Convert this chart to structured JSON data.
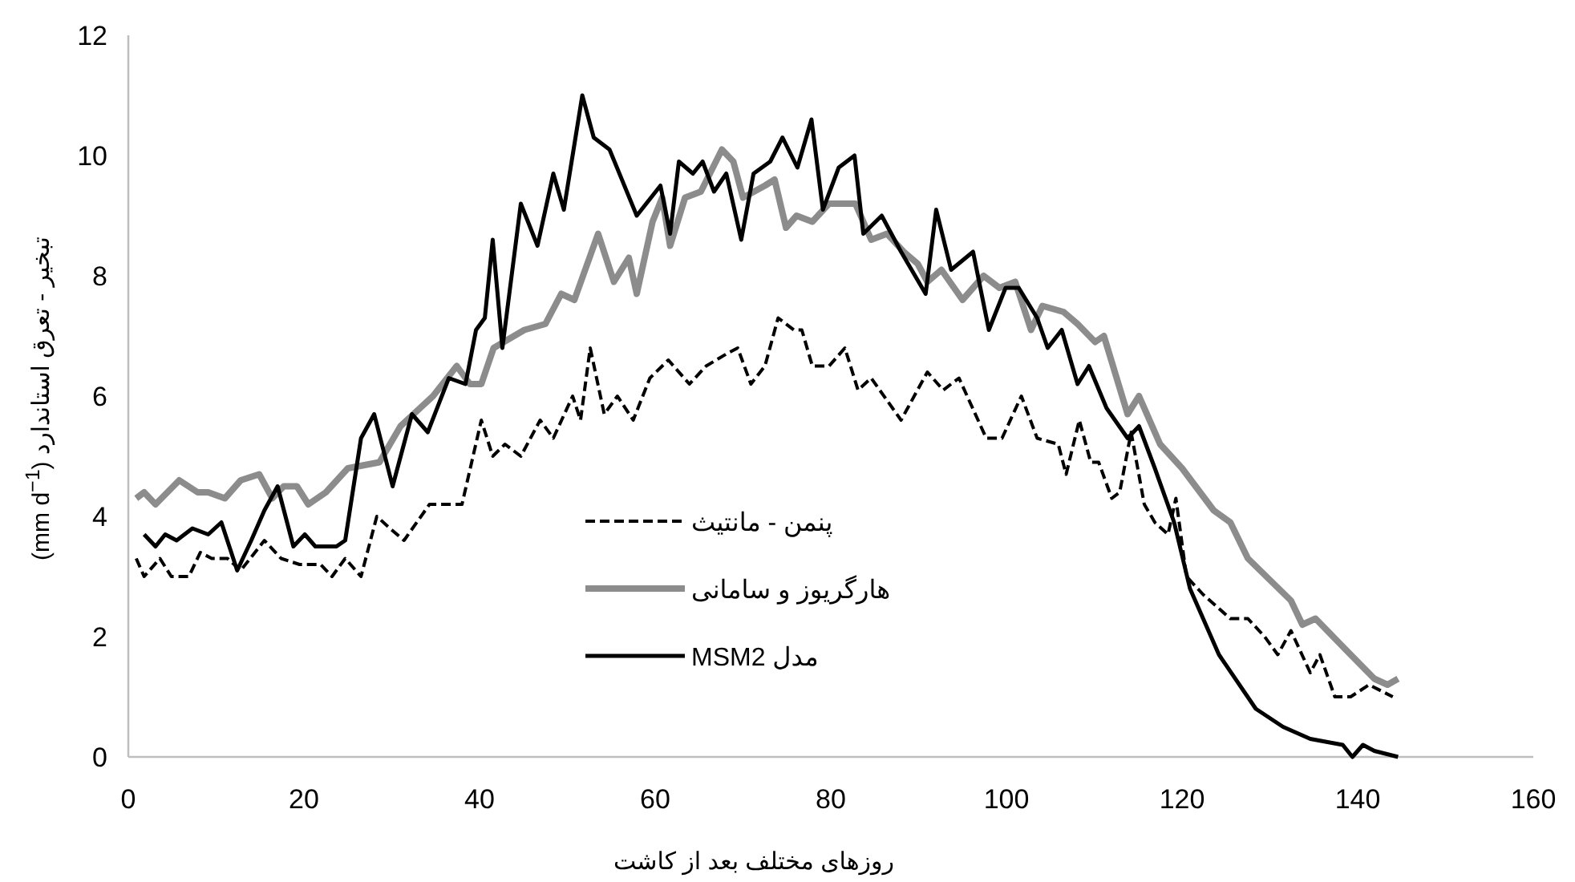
{
  "chart_data": {
    "type": "line",
    "xlabel": "روزهای مختلف بعد از کاشت",
    "ylabel": "تبخیر - تعرق استاندارد (mm d$^{−1}$)",
    "xlim": [
      0,
      160
    ],
    "xticks": [
      0,
      20,
      40,
      60,
      80,
      100,
      120,
      140,
      160
    ],
    "ylim": [
      0,
      12
    ],
    "yticks": [
      0,
      2,
      4,
      6,
      8,
      10,
      12
    ],
    "legend": "center",
    "series": [
      {
        "name": "پنمن - مانتیث",
        "color": "#000000",
        "line_style": "dashed",
        "x": [
          0.9,
          1.8,
          3.6,
          4.9,
          6.9,
          8.2,
          9.5,
          11.3,
          12.8,
          15.5,
          17.4,
          19.5,
          21.9,
          23.2,
          24.7,
          26.5,
          28.3,
          29.8,
          31.4,
          34.3,
          36.5,
          38,
          40.2,
          41.5,
          42.9,
          44.7,
          46.9,
          48.4,
          50.6,
          51.5,
          52.6,
          54.2,
          55.7,
          57.5,
          59.4,
          61.5,
          63.9,
          65.8,
          68.1,
          69.4,
          70.9,
          72.5,
          74,
          75.8,
          76.7,
          77.9,
          79.8,
          81.6,
          83.1,
          84.6,
          88,
          91,
          92.8,
          94.6,
          97.7,
          99.5,
          101.7,
          103.5,
          105.9,
          106.8,
          108.3,
          109.6,
          110.5,
          112,
          112.9,
          114.2,
          115.7,
          116.9,
          118.4,
          119.3,
          120.5,
          122.4,
          125.5,
          127.5,
          129.4,
          130.9,
          132.4,
          134.6,
          135.7,
          137.4,
          139.2,
          141.3,
          144
        ],
        "values": [
          3.3,
          3.0,
          3.3,
          3.0,
          3.0,
          3.4,
          3.3,
          3.3,
          3.1,
          3.6,
          3.3,
          3.2,
          3.2,
          3.0,
          3.3,
          3.0,
          4.0,
          3.8,
          3.6,
          4.2,
          4.2,
          4.2,
          5.6,
          5.0,
          5.2,
          5.0,
          5.6,
          5.3,
          6.0,
          5.6,
          6.8,
          5.7,
          6.0,
          5.6,
          6.3,
          6.6,
          6.2,
          6.5,
          6.7,
          6.8,
          6.2,
          6.5,
          7.3,
          7.1,
          7.1,
          6.5,
          6.5,
          6.8,
          6.1,
          6.3,
          5.6,
          6.4,
          6.1,
          6.3,
          5.3,
          5.3,
          6.0,
          5.3,
          5.2,
          4.7,
          5.6,
          4.9,
          4.9,
          4.3,
          4.4,
          5.4,
          4.2,
          3.9,
          3.7,
          4.3,
          3.0,
          2.7,
          2.3,
          2.3,
          2.0,
          1.7,
          2.1,
          1.4,
          1.7,
          1.0,
          1.0,
          1.2,
          1.0
        ]
      },
      {
        "name": "هارگریوز و سامانی",
        "color": "#8c8c8c",
        "line_style": "solid",
        "x": [
          0.9,
          1.8,
          3.1,
          5.8,
          7.9,
          9.1,
          11,
          12.8,
          14.9,
          16.4,
          17.7,
          19.2,
          20.5,
          22.5,
          25,
          28.6,
          31,
          34.7,
          37.4,
          38.9,
          40.2,
          41.6,
          45.1,
          47.5,
          49.3,
          50.8,
          53.5,
          55.3,
          57,
          57.9,
          59.7,
          60.8,
          61.7,
          63.4,
          65.2,
          67.6,
          68.9,
          70,
          72.5,
          73.6,
          74.9,
          76.1,
          77.9,
          79.8,
          82.8,
          84.6,
          86.4,
          88.3,
          89.9,
          91,
          92.6,
          95,
          97.4,
          99.2,
          101,
          102.8,
          104.1,
          106.5,
          108.1,
          110.1,
          111.1,
          113.8,
          115.1,
          117.5,
          120,
          123.6,
          125.5,
          127.5,
          130.3,
          132.4,
          133.7,
          135.2,
          139.2,
          141.9,
          143.4,
          144.6
        ],
        "values": [
          4.3,
          4.4,
          4.2,
          4.6,
          4.4,
          4.4,
          4.3,
          4.6,
          4.7,
          4.3,
          4.5,
          4.5,
          4.2,
          4.4,
          4.8,
          4.9,
          5.5,
          6.0,
          6.5,
          6.2,
          6.2,
          6.8,
          7.1,
          7.2,
          7.7,
          7.6,
          8.7,
          7.9,
          8.3,
          7.7,
          8.9,
          9.3,
          8.5,
          9.3,
          9.4,
          10.1,
          9.9,
          9.3,
          9.5,
          9.6,
          8.8,
          9.0,
          8.9,
          9.2,
          9.2,
          8.6,
          8.7,
          8.4,
          8.2,
          7.9,
          8.1,
          7.6,
          8.0,
          7.8,
          7.9,
          7.1,
          7.5,
          7.4,
          7.2,
          6.9,
          7.0,
          5.7,
          6.0,
          5.2,
          4.8,
          4.1,
          3.9,
          3.3,
          2.9,
          2.6,
          2.2,
          2.3,
          1.7,
          1.3,
          1.2,
          1.3
        ]
      },
      {
        "name": "مدل MSM2",
        "color": "#000000",
        "line_style": "solid",
        "x": [
          1.8,
          3.1,
          4.2,
          5.5,
          7.3,
          9.1,
          10.6,
          12.4,
          14,
          15.5,
          17,
          18.8,
          20.1,
          21.3,
          23.7,
          24.7,
          26.5,
          28,
          30.1,
          32.3,
          34.1,
          36.5,
          38.4,
          39.6,
          40.6,
          41.5,
          42.6,
          44.7,
          46.6,
          48.4,
          49.6,
          51.7,
          53,
          54.8,
          57.9,
          60.6,
          61.7,
          62.7,
          64.3,
          65.4,
          66.7,
          68.1,
          69.8,
          71.2,
          73.1,
          74.5,
          76.2,
          77.8,
          79.1,
          80.9,
          82.7,
          83.7,
          85.8,
          88,
          90.8,
          92,
          93.7,
          96.2,
          98,
          99.9,
          101.4,
          103.5,
          104.7,
          106.3,
          108.1,
          109.4,
          111.4,
          113.8,
          115.1,
          116.9,
          119.1,
          120.9,
          124.2,
          128.4,
          131.5,
          134.6,
          138.3,
          139.4,
          140.6,
          141.9,
          144.6
        ],
        "values": [
          3.7,
          3.5,
          3.7,
          3.6,
          3.8,
          3.7,
          3.9,
          3.1,
          3.6,
          4.1,
          4.5,
          3.5,
          3.7,
          3.5,
          3.5,
          3.6,
          5.3,
          5.7,
          4.5,
          5.7,
          5.4,
          6.3,
          6.2,
          7.1,
          7.3,
          8.6,
          6.8,
          9.2,
          8.5,
          9.7,
          9.1,
          11.0,
          10.3,
          10.1,
          9.0,
          9.5,
          8.7,
          9.9,
          9.7,
          9.9,
          9.4,
          9.7,
          8.6,
          9.7,
          9.9,
          10.3,
          9.8,
          10.6,
          9.1,
          9.8,
          10.0,
          8.7,
          9.0,
          8.4,
          7.7,
          9.1,
          8.1,
          8.4,
          7.1,
          7.8,
          7.8,
          7.3,
          6.8,
          7.1,
          6.2,
          6.5,
          5.8,
          5.3,
          5.5,
          4.8,
          3.9,
          2.8,
          1.7,
          0.8,
          0.5,
          0.3,
          0.2,
          0.0,
          0.2,
          0.1,
          0.0
        ]
      }
    ]
  }
}
